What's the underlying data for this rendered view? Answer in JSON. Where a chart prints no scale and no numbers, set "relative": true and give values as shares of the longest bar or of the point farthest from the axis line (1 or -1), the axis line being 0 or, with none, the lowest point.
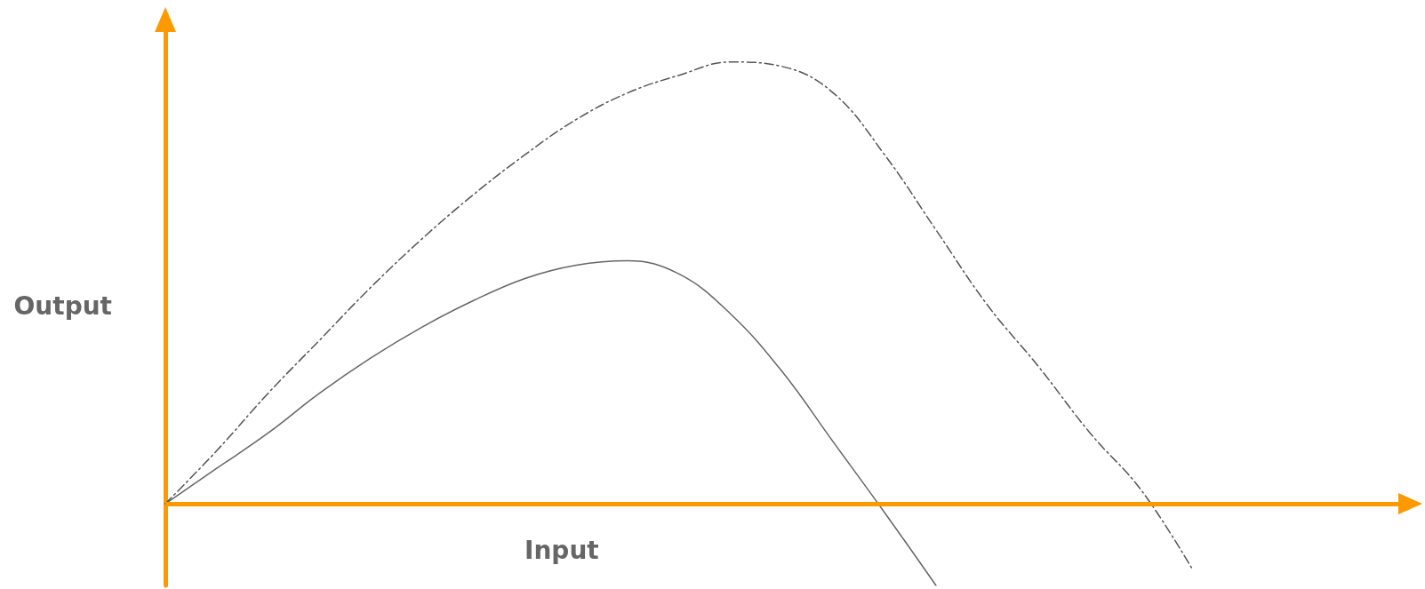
{
  "chart_data": {
    "type": "line",
    "relative": true,
    "xlabel": "Input",
    "ylabel": "Output",
    "grid": false,
    "ref_lines": [
      {
        "axis": "y",
        "value": 0,
        "color": "#ff9900"
      }
    ],
    "categories": [
      null,
      null,
      null,
      null,
      null,
      null,
      null,
      null,
      null,
      null,
      null,
      null,
      null,
      null,
      null,
      null,
      null,
      null,
      null,
      null,
      null,
      null,
      null,
      null,
      null
    ],
    "series": [
      {
        "color": "#666666",
        "line_style": "solid",
        "values": [
          0,
          0.08,
          0.16,
          0.25,
          0.33,
          0.4,
          0.46,
          0.51,
          0.54,
          0.55,
          0.52,
          0.43,
          0.3,
          0.14,
          -0.02,
          -0.185,
          null,
          null,
          null,
          null,
          null,
          null,
          null,
          null,
          null
        ]
      },
      {
        "color": "#555555",
        "line_style": "dashed",
        "values": [
          0,
          0.12,
          0.25,
          0.37,
          0.49,
          0.6,
          0.7,
          0.79,
          0.87,
          0.93,
          0.97,
          1,
          0.99,
          0.93,
          0.79,
          0.62,
          0.45,
          0.31,
          0.16,
          0.03,
          -0.15,
          null,
          null,
          null,
          null
        ]
      }
    ]
  }
}
